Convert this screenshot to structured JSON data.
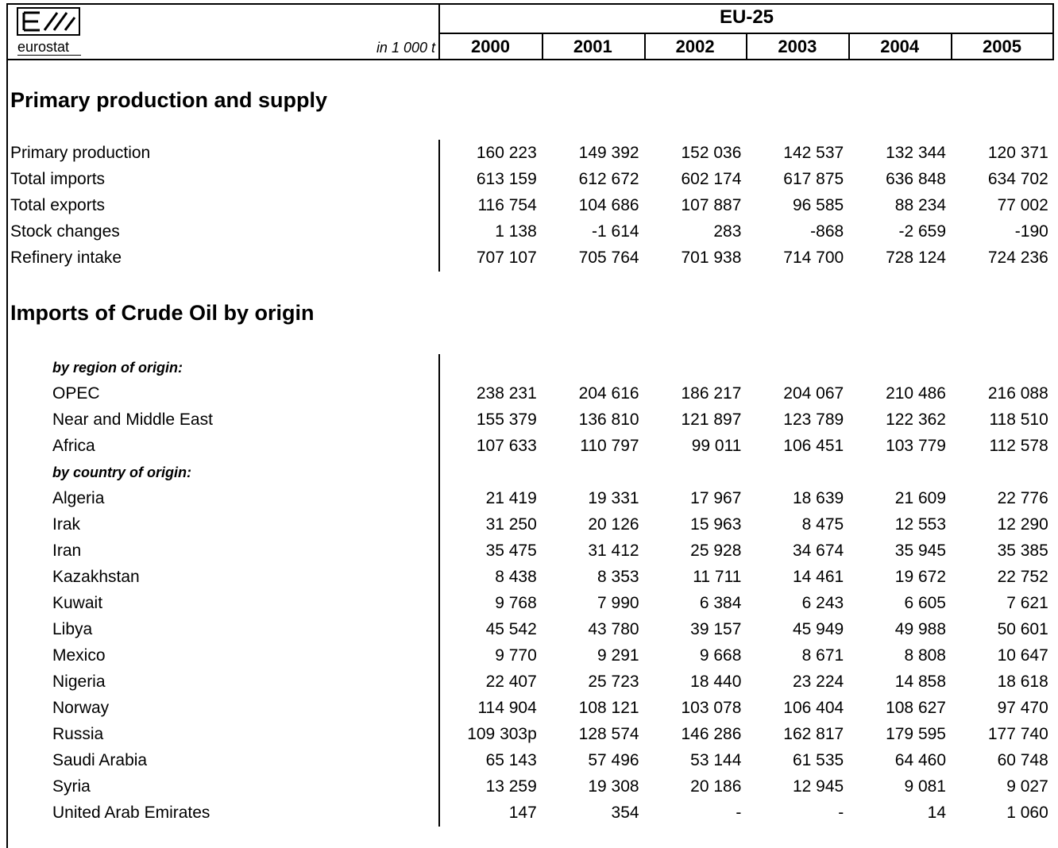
{
  "header": {
    "logo": "eurostat",
    "unit": "in 1 000 t",
    "region": "EU-25",
    "years": [
      "2000",
      "2001",
      "2002",
      "2003",
      "2004",
      "2005"
    ]
  },
  "sections": [
    {
      "title": "Primary production and supply",
      "rows": [
        {
          "label": "Primary production",
          "values": [
            "160 223",
            "149 392",
            "152 036",
            "142 537",
            "132 344",
            "120 371"
          ]
        },
        {
          "label": "Total imports",
          "values": [
            "613 159",
            "612 672",
            "602 174",
            "617 875",
            "636 848",
            "634 702"
          ]
        },
        {
          "label": "Total exports",
          "values": [
            "116 754",
            "104 686",
            "107 887",
            "96 585",
            "88 234",
            "77 002"
          ]
        },
        {
          "label": "Stock changes",
          "values": [
            "1 138",
            "-1 614",
            "283",
            "-868",
            "-2 659",
            "-190"
          ]
        },
        {
          "label": "Refinery intake",
          "values": [
            "707 107",
            "705 764",
            "701 938",
            "714 700",
            "728 124",
            "724 236"
          ]
        }
      ]
    },
    {
      "title": "Imports of Crude Oil by origin",
      "indent": true,
      "rows": [
        {
          "label": "by region of origin:",
          "subheading": true
        },
        {
          "label": "OPEC",
          "values": [
            "238 231",
            "204 616",
            "186 217",
            "204 067",
            "210 486",
            "216 088"
          ]
        },
        {
          "label": "Near and Middle East",
          "values": [
            "155 379",
            "136 810",
            "121 897",
            "123 789",
            "122 362",
            "118 510"
          ]
        },
        {
          "label": "Africa",
          "values": [
            "107 633",
            "110 797",
            "99 011",
            "106 451",
            "103 779",
            "112 578"
          ]
        },
        {
          "label": "by country of origin:",
          "subheading": true
        },
        {
          "label": "Algeria",
          "values": [
            "21 419",
            "19 331",
            "17 967",
            "18 639",
            "21 609",
            "22 776"
          ]
        },
        {
          "label": "Irak",
          "values": [
            "31 250",
            "20 126",
            "15 963",
            "8 475",
            "12 553",
            "12 290"
          ]
        },
        {
          "label": "Iran",
          "values": [
            "35 475",
            "31 412",
            "25 928",
            "34 674",
            "35 945",
            "35 385"
          ]
        },
        {
          "label": "Kazakhstan",
          "values": [
            "8 438",
            "8 353",
            "11 711",
            "14 461",
            "19 672",
            "22 752"
          ]
        },
        {
          "label": "Kuwait",
          "values": [
            "9 768",
            "7 990",
            "6 384",
            "6 243",
            "6 605",
            "7 621"
          ]
        },
        {
          "label": "Libya",
          "values": [
            "45 542",
            "43 780",
            "39 157",
            "45 949",
            "49 988",
            "50 601"
          ]
        },
        {
          "label": "Mexico",
          "values": [
            "9 770",
            "9 291",
            "9 668",
            "8 671",
            "8 808",
            "10 647"
          ]
        },
        {
          "label": "Nigeria",
          "values": [
            "22 407",
            "25 723",
            "18 440",
            "23 224",
            "14 858",
            "18 618"
          ]
        },
        {
          "label": "Norway",
          "values": [
            "114 904",
            "108 121",
            "103 078",
            "106 404",
            "108 627",
            "97 470"
          ]
        },
        {
          "label": "Russia",
          "values": [
            "109 303p",
            "128 574",
            "146 286",
            "162 817",
            "179 595",
            "177 740"
          ]
        },
        {
          "label": "Saudi Arabia",
          "values": [
            "65 143",
            "57 496",
            "53 144",
            "61 535",
            "64 460",
            "60 748"
          ]
        },
        {
          "label": "Syria",
          "values": [
            "13 259",
            "19 308",
            "20 186",
            "12 945",
            "9 081",
            "9 027"
          ]
        },
        {
          "label": "United Arab Emirates",
          "values": [
            "147",
            "354",
            "-",
            "-",
            "14",
            "1 060"
          ]
        }
      ]
    }
  ]
}
